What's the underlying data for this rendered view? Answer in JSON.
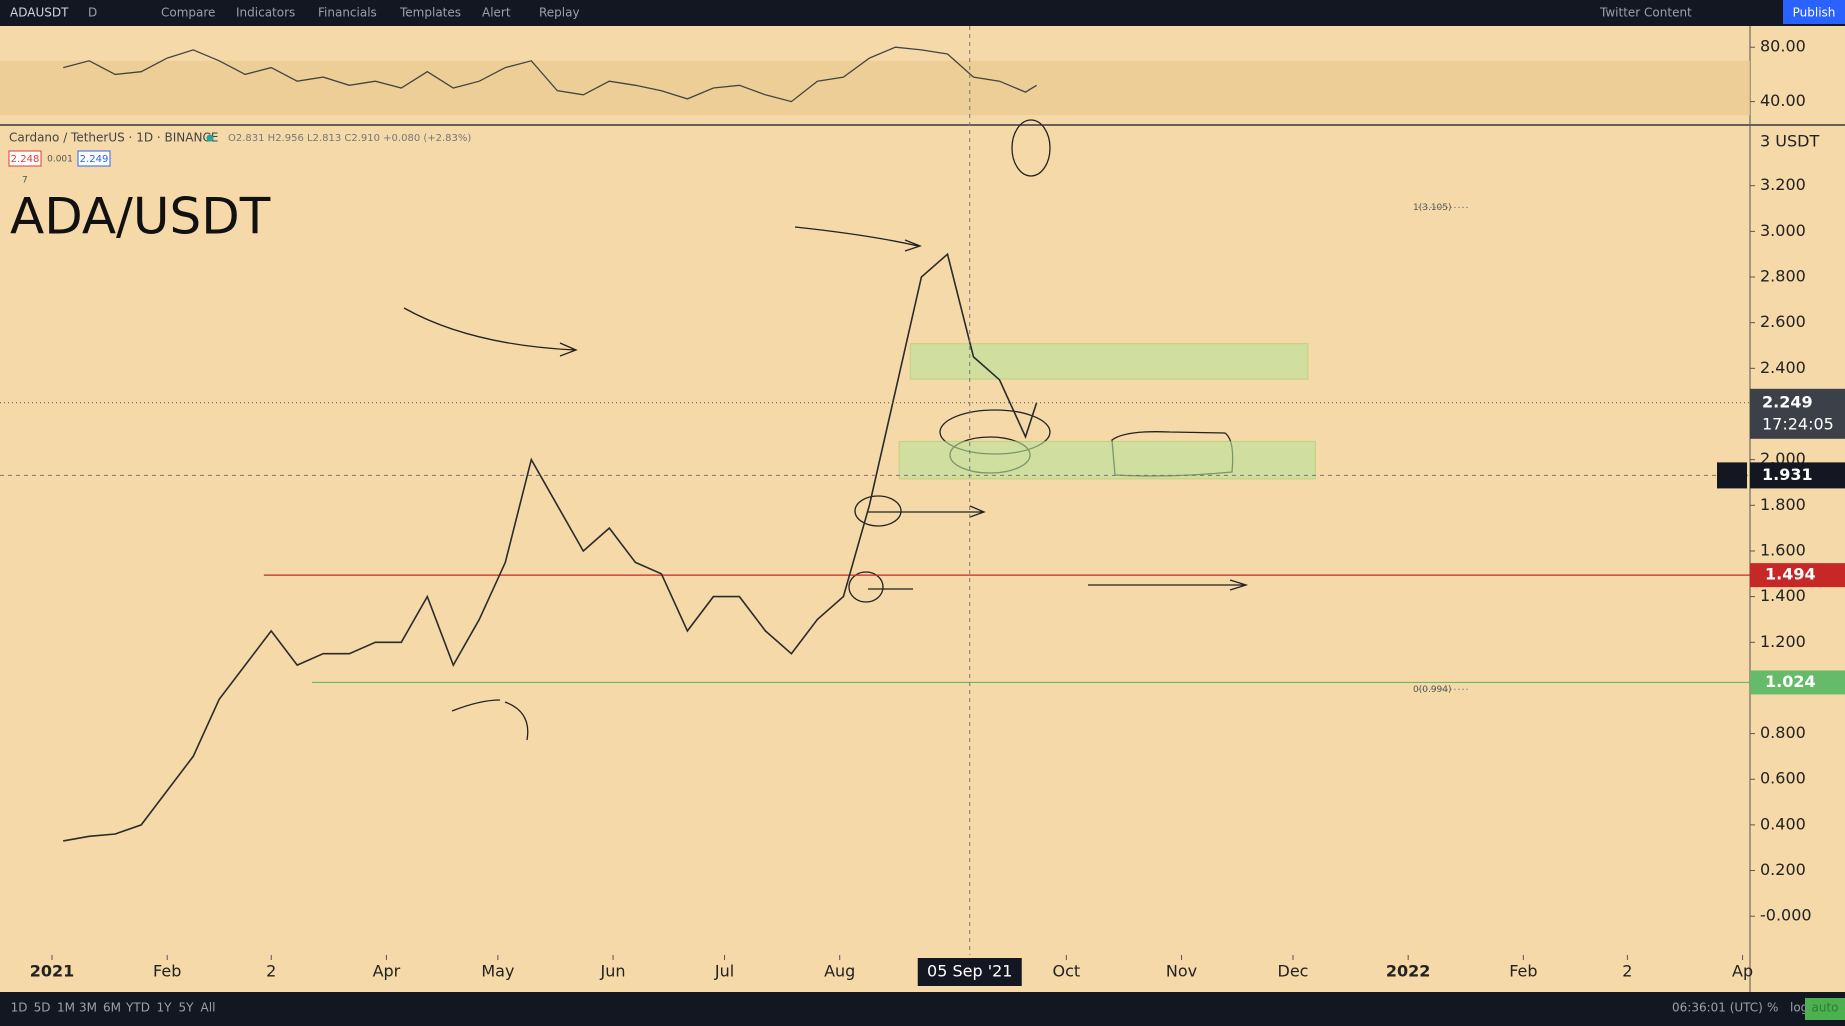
{
  "toolbar": {
    "symbol": "ADAUSDT",
    "interval": "D",
    "items": [
      "Compare",
      "Indicators",
      "Financials",
      "Templates",
      "Alert",
      "Replay"
    ],
    "layout": "Twitter Content",
    "publish": "Publish"
  },
  "legend": {
    "title": "Cardano / TetherUS · 1D · BINANCE",
    "ohlc": "O2.831 H2.956 L2.813 C2.910 +0.080 (+2.83%)",
    "bid": "2.248",
    "spread": "0.001",
    "ask": "2.249",
    "collapse": "7"
  },
  "overlay_title": "ADA/USDT",
  "chart_data": [
    {
      "type": "line",
      "color": "#444444",
      "band": [
        30,
        70
      ],
      "band_color": "#e8c98f",
      "x": [
        "2021-01-04",
        "2021-01-11",
        "2021-01-18",
        "2021-01-25",
        "2021-02-01",
        "2021-02-08",
        "2021-02-15",
        "2021-02-22",
        "2021-03-01",
        "2021-03-08",
        "2021-03-15",
        "2021-03-22",
        "2021-03-29",
        "2021-04-05",
        "2021-04-12",
        "2021-04-19",
        "2021-04-26",
        "2021-05-03",
        "2021-05-10",
        "2021-05-17",
        "2021-05-24",
        "2021-05-31",
        "2021-06-07",
        "2021-06-14",
        "2021-06-21",
        "2021-06-28",
        "2021-07-05",
        "2021-07-12",
        "2021-07-19",
        "2021-07-26",
        "2021-08-02",
        "2021-08-09",
        "2021-08-16",
        "2021-08-23",
        "2021-08-30",
        "2021-09-06",
        "2021-09-13",
        "2021-09-20",
        "2021-09-23"
      ],
      "values": [
        65,
        70,
        60,
        62,
        72,
        78,
        70,
        60,
        65,
        55,
        58,
        52,
        55,
        50,
        62,
        50,
        55,
        65,
        70,
        48,
        45,
        55,
        52,
        48,
        42,
        50,
        52,
        45,
        40,
        55,
        58,
        72,
        80,
        78,
        75,
        58,
        55,
        47,
        52
      ],
      "ylim": [
        23.5,
        95.6
      ],
      "yticks": [
        {
          "value": 80,
          "label": "80.00"
        },
        {
          "value": 40,
          "label": "40.00"
        }
      ]
    },
    {
      "type": "line",
      "color": "#2b2b2b",
      "axis_label": "3 USDT",
      "x": [
        "2021-01-04",
        "2021-01-11",
        "2021-01-18",
        "2021-01-25",
        "2021-02-01",
        "2021-02-08",
        "2021-02-15",
        "2021-02-22",
        "2021-03-01",
        "2021-03-08",
        "2021-03-15",
        "2021-03-22",
        "2021-03-29",
        "2021-04-05",
        "2021-04-12",
        "2021-04-19",
        "2021-04-26",
        "2021-05-03",
        "2021-05-10",
        "2021-05-17",
        "2021-05-24",
        "2021-05-31",
        "2021-06-07",
        "2021-06-14",
        "2021-06-21",
        "2021-06-28",
        "2021-07-05",
        "2021-07-12",
        "2021-07-19",
        "2021-07-26",
        "2021-08-02",
        "2021-08-09",
        "2021-08-16",
        "2021-08-23",
        "2021-08-30",
        "2021-09-06",
        "2021-09-13",
        "2021-09-20",
        "2021-09-23"
      ],
      "values": [
        0.33,
        0.35,
        0.36,
        0.4,
        0.55,
        0.7,
        0.95,
        1.1,
        1.25,
        1.1,
        1.15,
        1.15,
        1.2,
        1.2,
        1.4,
        1.1,
        1.3,
        1.55,
        2.0,
        1.8,
        1.6,
        1.7,
        1.55,
        1.5,
        1.25,
        1.4,
        1.4,
        1.25,
        1.15,
        1.3,
        1.4,
        1.8,
        2.3,
        2.8,
        2.9,
        2.45,
        2.35,
        2.1,
        2.249
      ],
      "xlim": [
        "2020-12-18",
        "2022-04-03"
      ],
      "xticks": [
        {
          "value": "2021-01-01",
          "label": "2021"
        },
        {
          "value": "2021-02-01",
          "label": "Feb"
        },
        {
          "value": "2021-03-01",
          "label": "2"
        },
        {
          "value": "2021-04-01",
          "label": "Apr"
        },
        {
          "value": "2021-05-01",
          "label": "May"
        },
        {
          "value": "2021-06-01",
          "label": "Jun"
        },
        {
          "value": "2021-07-01",
          "label": "Jul"
        },
        {
          "value": "2021-08-01",
          "label": "Aug"
        },
        {
          "value": "2021-10-01",
          "label": "Oct"
        },
        {
          "value": "2021-11-01",
          "label": "Nov"
        },
        {
          "value": "2021-12-01",
          "label": "Dec"
        },
        {
          "value": "2022-01-01",
          "label": "2022"
        },
        {
          "value": "2022-02-01",
          "label": "Feb"
        },
        {
          "value": "2022-03-01",
          "label": "2"
        },
        {
          "value": "2022-04-01",
          "label": "Ap"
        }
      ],
      "ylim": [
        -0.17,
        3.466
      ],
      "yticks": [
        {
          "value": 3.2,
          "label": "3.200"
        },
        {
          "value": 3.0,
          "label": "3.000"
        },
        {
          "value": 2.8,
          "label": "2.800"
        },
        {
          "value": 2.6,
          "label": "2.600"
        },
        {
          "value": 2.4,
          "label": "2.400"
        },
        {
          "value": 2.0,
          "label": "2.000"
        },
        {
          "value": 1.8,
          "label": "1.800"
        },
        {
          "value": 1.6,
          "label": "1.600"
        },
        {
          "value": 1.4,
          "label": "1.400"
        },
        {
          "value": 1.2,
          "label": "1.200"
        },
        {
          "value": 0.8,
          "label": "0.800"
        },
        {
          "value": 0.6,
          "label": "0.600"
        },
        {
          "value": 0.4,
          "label": "0.400"
        },
        {
          "value": 0.2,
          "label": "0.200"
        },
        {
          "value": 0,
          "label": "-0.000"
        }
      ],
      "levels": [
        {
          "value": 1.494,
          "label": "1.494",
          "color": "#c62828",
          "from": "2021-02-27"
        },
        {
          "value": 1.024,
          "label": "1.024",
          "color": "#66bb6a",
          "from": "2021-03-12"
        }
      ],
      "last_price": {
        "value": 2.249,
        "label": "2.249",
        "countdown": "17:24:05"
      },
      "crosshair": {
        "x": "2021-09-05",
        "x_label": "05 Sep '21",
        "y": 1.931,
        "y_label": "1.931"
      },
      "fib": [
        {
          "value": 3.105,
          "label": "1(3.105)"
        },
        {
          "value": 0.994,
          "label": "0(0.994)"
        }
      ],
      "zones": [
        {
          "low": 2.353,
          "high": 2.508,
          "from": "2021-08-20",
          "to": "2021-12-05"
        },
        {
          "low": 1.916,
          "high": 2.08,
          "from": "2021-08-17",
          "to": "2021-12-07"
        }
      ],
      "zone_color": "#b9e39a"
    }
  ],
  "bottom_bar": {
    "ranges": [
      "1D",
      "5D",
      "1M",
      "3M",
      "6M",
      "YTD",
      "1Y",
      "5Y",
      "All"
    ],
    "clock": "06:36:01 (UTC)",
    "percent": "%",
    "log": "log",
    "auto": "auto"
  }
}
